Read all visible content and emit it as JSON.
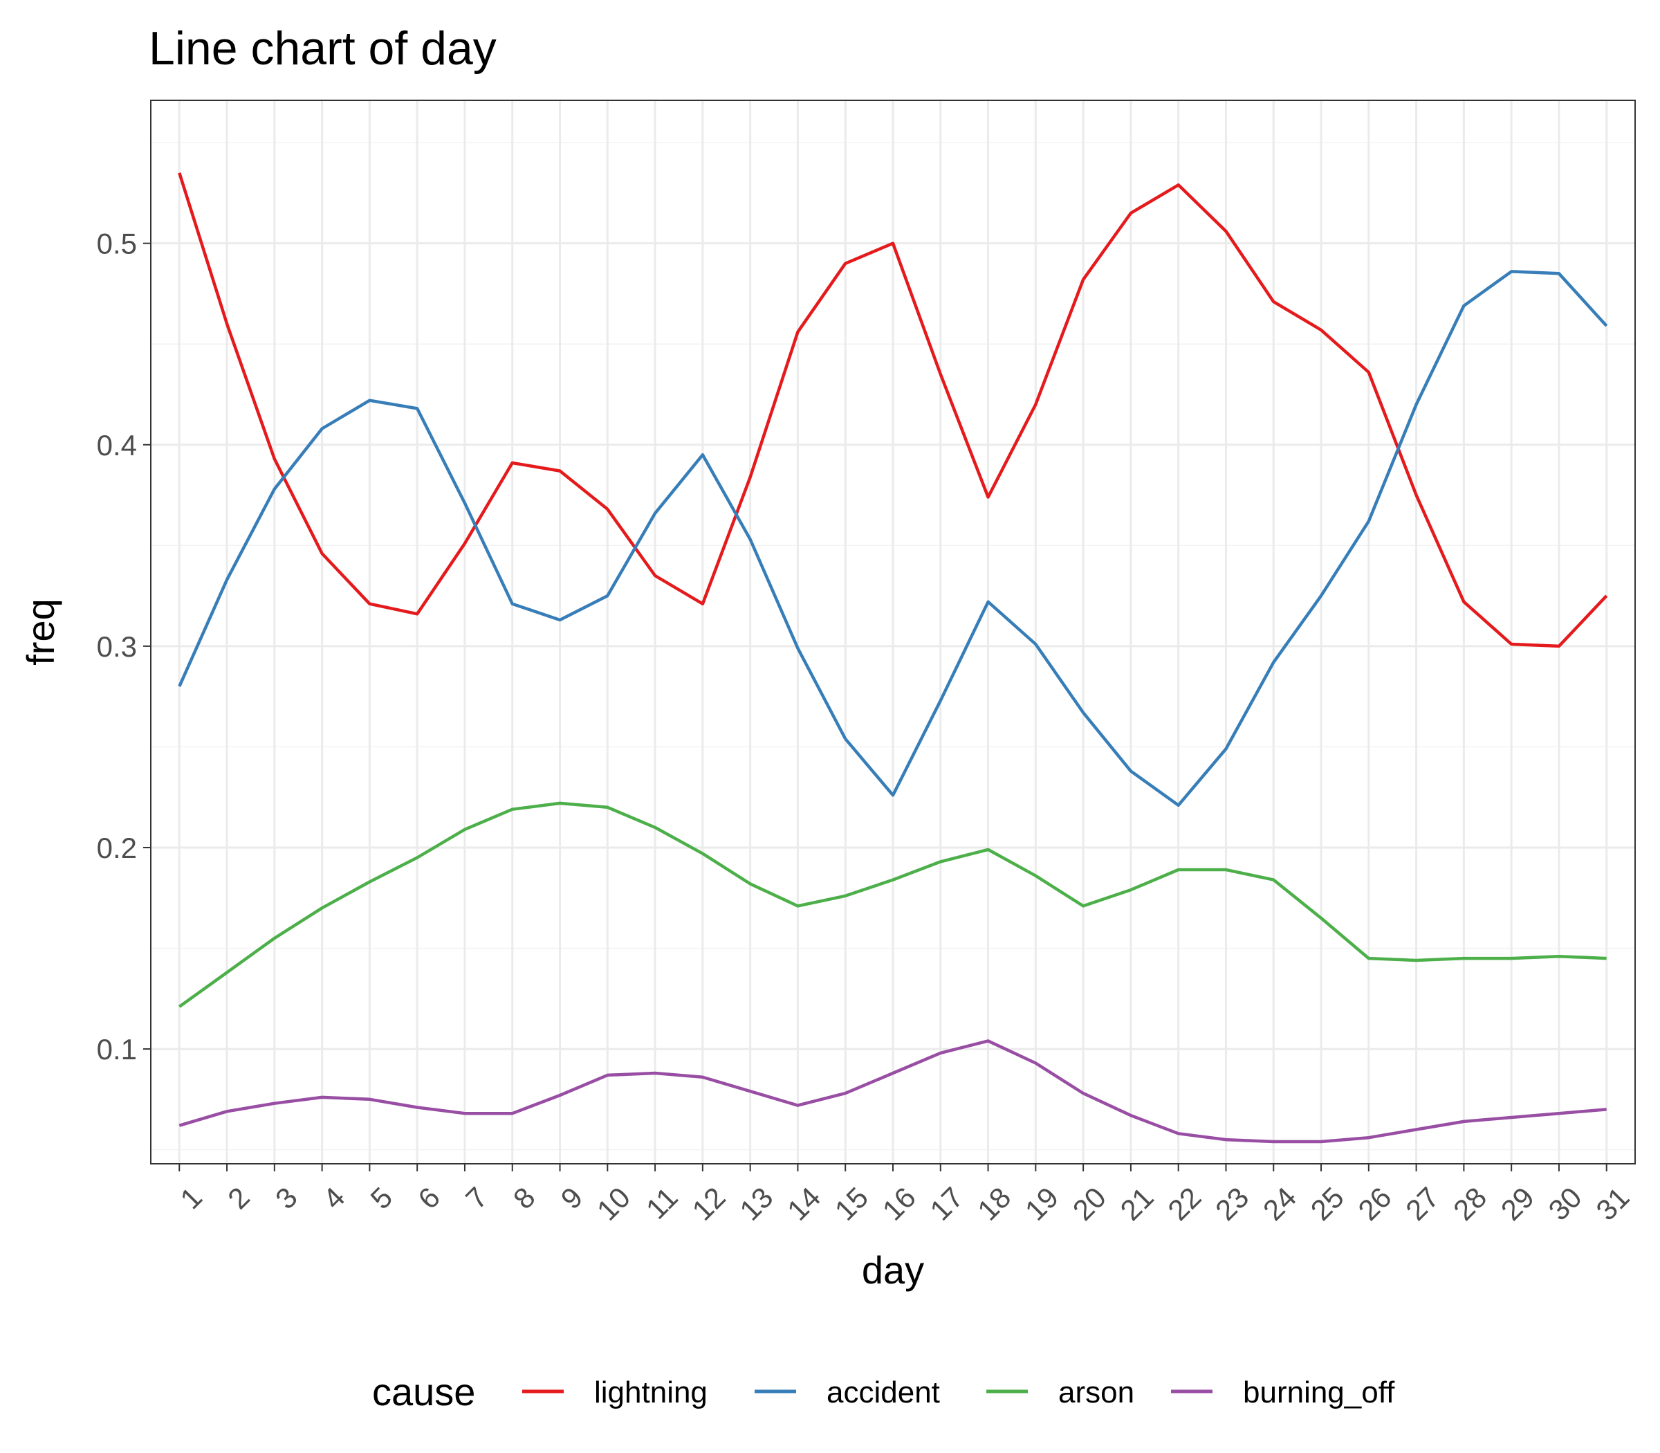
{
  "chart_data": {
    "type": "line",
    "title": "Line chart of day",
    "xlabel": "day",
    "ylabel": "freq",
    "x": [
      1,
      2,
      3,
      4,
      5,
      6,
      7,
      8,
      9,
      10,
      11,
      12,
      13,
      14,
      15,
      16,
      17,
      18,
      19,
      20,
      21,
      22,
      23,
      24,
      25,
      26,
      27,
      28,
      29,
      30,
      31
    ],
    "ylim": [
      0.043,
      0.571
    ],
    "yticks": [
      0.1,
      0.2,
      0.3,
      0.4,
      0.5
    ],
    "ytick_labels": [
      "0.1",
      "0.2",
      "0.3",
      "0.4",
      "0.5"
    ],
    "grid": true,
    "legend_title": "cause",
    "legend_position": "bottom",
    "series": [
      {
        "name": "lightning",
        "color": "#e41a1c",
        "values": [
          0.535,
          0.46,
          0.393,
          0.346,
          0.321,
          0.316,
          0.351,
          0.391,
          0.387,
          0.368,
          0.335,
          0.321,
          0.384,
          0.456,
          0.49,
          0.5,
          0.435,
          0.374,
          0.42,
          0.482,
          0.515,
          0.529,
          0.506,
          0.471,
          0.457,
          0.436,
          0.375,
          0.322,
          0.301,
          0.3,
          0.325
        ]
      },
      {
        "name": "accident",
        "color": "#377eb8",
        "values": [
          0.28,
          0.333,
          0.378,
          0.408,
          0.422,
          0.418,
          0.371,
          0.321,
          0.313,
          0.325,
          0.366,
          0.395,
          0.353,
          0.299,
          0.254,
          0.226,
          0.273,
          0.322,
          0.301,
          0.267,
          0.238,
          0.221,
          0.249,
          0.292,
          0.325,
          0.362,
          0.42,
          0.469,
          0.486,
          0.485,
          0.459
        ]
      },
      {
        "name": "arson",
        "color": "#4daf4a",
        "values": [
          0.121,
          0.138,
          0.155,
          0.17,
          0.183,
          0.195,
          0.209,
          0.219,
          0.222,
          0.22,
          0.21,
          0.197,
          0.182,
          0.171,
          0.176,
          0.184,
          0.193,
          0.199,
          0.186,
          0.171,
          0.179,
          0.189,
          0.189,
          0.184,
          0.165,
          0.145,
          0.144,
          0.145,
          0.145,
          0.146,
          0.145
        ]
      },
      {
        "name": "burning_off",
        "color": "#984ea3",
        "values": [
          0.062,
          0.069,
          0.073,
          0.076,
          0.075,
          0.071,
          0.068,
          0.068,
          0.077,
          0.087,
          0.088,
          0.086,
          0.079,
          0.072,
          0.078,
          0.088,
          0.098,
          0.104,
          0.093,
          0.078,
          0.067,
          0.058,
          0.055,
          0.054,
          0.054,
          0.056,
          0.06,
          0.064,
          0.066,
          0.068,
          0.07
        ]
      }
    ]
  }
}
